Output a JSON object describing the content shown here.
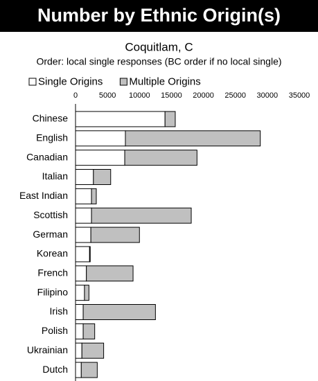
{
  "chart_data": {
    "type": "bar",
    "orientation": "horizontal",
    "stacked": true,
    "title": "Number by Ethnic Origin(s)",
    "subtitle": "Coquitlam, C",
    "note": "Order: local single responses (BC order if no local single)",
    "categories": [
      "Chinese",
      "English",
      "Canadian",
      "Italian",
      "East Indian",
      "Scottish",
      "German",
      "Korean",
      "French",
      "Filipino",
      "Irish",
      "Polish",
      "Ukrainian",
      "Dutch"
    ],
    "series": [
      {
        "name": "Single Origins",
        "color": "#ffffff",
        "values": [
          14000,
          7800,
          7700,
          2800,
          2500,
          2500,
          2400,
          2200,
          1700,
          1400,
          1200,
          1200,
          1000,
          900
        ]
      },
      {
        "name": "Multiple Origins",
        "color": "#c0c0c0",
        "values": [
          1600,
          21100,
          11300,
          2700,
          750,
          15600,
          7600,
          100,
          7300,
          700,
          11300,
          1800,
          3400,
          2500
        ]
      }
    ],
    "xlim": [
      0,
      35000
    ],
    "xticks": [
      0,
      5000,
      10000,
      15000,
      20000,
      25000,
      30000,
      35000
    ],
    "legend": "top-left",
    "grid": false
  }
}
